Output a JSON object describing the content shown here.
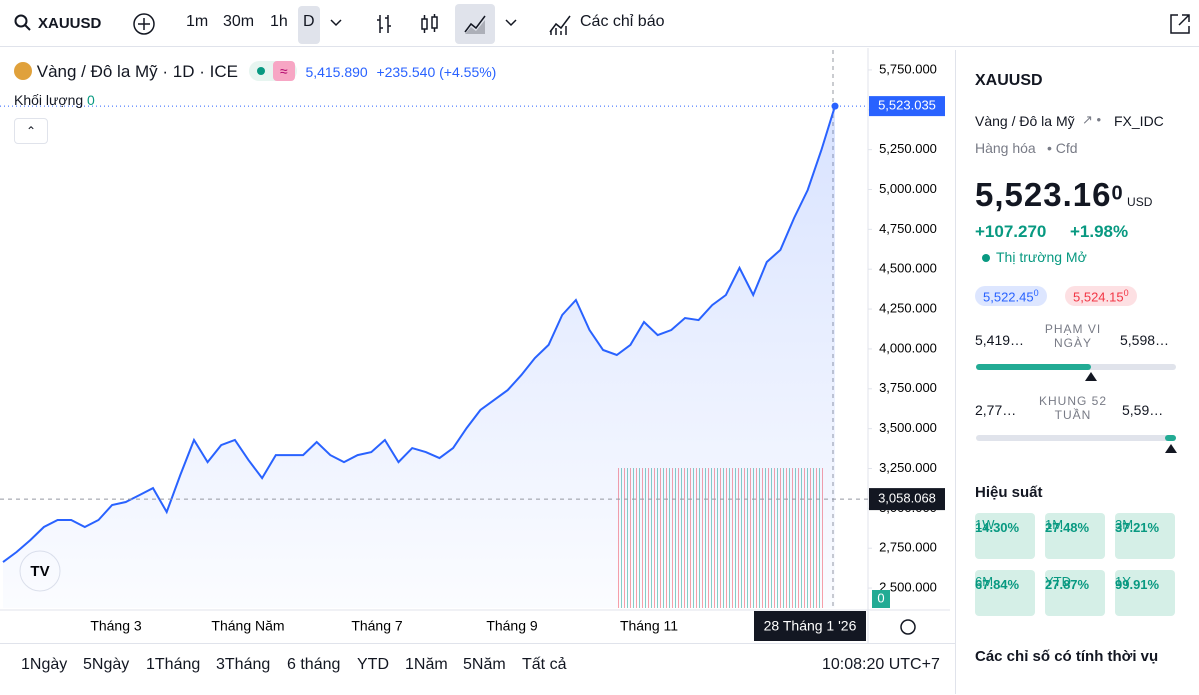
{
  "toolbar": {
    "symbol": "XAUUSD",
    "intervals": [
      "1m",
      "30m",
      "1h",
      "D"
    ],
    "indicators": "Các chỉ báo"
  },
  "legend": {
    "title": "Vàng / Đô la Mỹ · 1D · ICE",
    "price": "5,415.890",
    "change": "+235.540 (+4.55%)",
    "volume_label": "Khối lượng",
    "volume": "0"
  },
  "chart": {
    "type": "line",
    "color": "#2962ff",
    "values": [
      2663,
      2726,
      2801,
      2883,
      2927,
      2927,
      2883,
      2927,
      3021,
      3040,
      3083,
      3127,
      2977,
      3209,
      3429,
      3290,
      3397,
      3429,
      3303,
      3190,
      3334,
      3334,
      3334,
      3416,
      3334,
      3290,
      3334,
      3353,
      3429,
      3290,
      3378,
      3353,
      3315,
      3378,
      3504,
      3617,
      3679,
      3742,
      3836,
      3943,
      4025,
      4213,
      4307,
      4119,
      3993,
      3962,
      4025,
      4169,
      4087,
      4119,
      4194,
      4181,
      4275,
      4338,
      4508,
      4338,
      4545,
      4621,
      4821,
      4997,
      5248,
      5523.035
    ],
    "ylim": [
      2375,
      5875
    ],
    "yticks": [
      {
        "value": 2500,
        "label": "2,500.000"
      },
      {
        "value": 2750,
        "label": "2,750.000"
      },
      {
        "value": 3000,
        "label": "3,000.000"
      },
      {
        "value": 3250,
        "label": "3,250.000"
      },
      {
        "value": 3500,
        "label": "3,500.000"
      },
      {
        "value": 3750,
        "label": "3,750.000"
      },
      {
        "value": 4000,
        "label": "4,000.000"
      },
      {
        "value": 4250,
        "label": "4,250.000"
      },
      {
        "value": 4500,
        "label": "4,500.000"
      },
      {
        "value": 4750,
        "label": "4,750.000"
      },
      {
        "value": 5000,
        "label": "5,000.000"
      },
      {
        "value": 5250,
        "label": "5,250.000"
      },
      {
        "value": 5500,
        "label": "5,500.000"
      },
      {
        "value": 5750,
        "label": "5,750.000"
      }
    ],
    "xlabels": [
      "Tháng 3",
      "Tháng Năm",
      "Tháng 7",
      "Tháng 9",
      "Tháng 11"
    ],
    "crosshair_date": "28 Tháng 1 '26",
    "last_price": {
      "value": 5523.035,
      "label": "5,523.035"
    },
    "cursor_price": {
      "value": 3058.068,
      "label": "3,058.068"
    },
    "volume_axis": "0"
  },
  "range_bar": {
    "ranges": [
      "1Ngày",
      "5Ngày",
      "1Tháng",
      "3Tháng",
      "6 tháng",
      "YTD",
      "1Năm",
      "5Năm",
      "Tất cả"
    ],
    "time": "10:08:20 UTC+7"
  },
  "panel": {
    "symbol": "XAUUSD",
    "name": "Vàng / Đô la Mỹ",
    "source": "FX_IDC",
    "category": "Hàng hóa",
    "kind": "Cfd",
    "price": "5,523.16",
    "price_sup": "0",
    "currency": "USD",
    "change": "+107.270",
    "change_pct": "+1.98%",
    "status": "Thị trường Mở",
    "bid": "5,522.45",
    "bid_sup": "0",
    "ask": "5,524.15",
    "ask_sup": "0",
    "day_low": "5,419…",
    "day_label": "PHẠM VI NGÀY",
    "day_high": "5,598…",
    "year_low": "2,77…",
    "year_label": "KHUNG 52 TUẦN",
    "year_high": "5,59…",
    "performance_title": "Hiệu suất",
    "performance": [
      {
        "value": "14.30%",
        "period": "1W"
      },
      {
        "value": "27.48%",
        "period": "1M"
      },
      {
        "value": "37.21%",
        "period": "3M"
      },
      {
        "value": "67.84%",
        "period": "6M"
      },
      {
        "value": "27.87%",
        "period": "YTD"
      },
      {
        "value": "99.91%",
        "period": "1Y"
      }
    ],
    "seasonal": "Các chỉ số có tính thời vụ"
  }
}
